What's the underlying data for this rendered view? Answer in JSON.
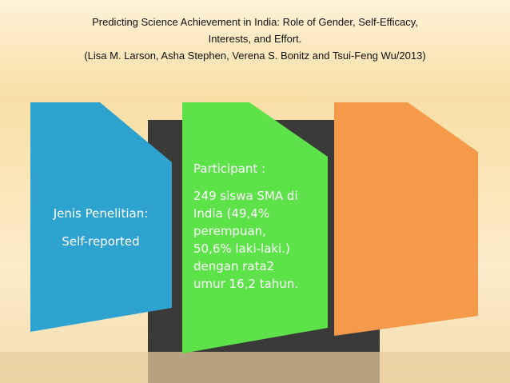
{
  "title": {
    "lines": [
      "Predicting Science Achievement in India: Role of Gender, Self-Efficacy,",
      "Interests, and Effort.",
      "(Lisa M. Larson, Asha Stephen, Verena S. Bonitz and Tsui-Feng Wu/2013)"
    ]
  },
  "boxes": [
    {
      "heading": "Jenis Penelitian:",
      "lines": [
        "Self-reported"
      ]
    },
    {
      "heading": "Participant :",
      "lines": [
        "249 siswa SMA di",
        "India (49,4%",
        "perempuan,",
        "50,6% laki-laki.)",
        "dengan rata2",
        "umur 16,2 tahun."
      ]
    }
  ]
}
